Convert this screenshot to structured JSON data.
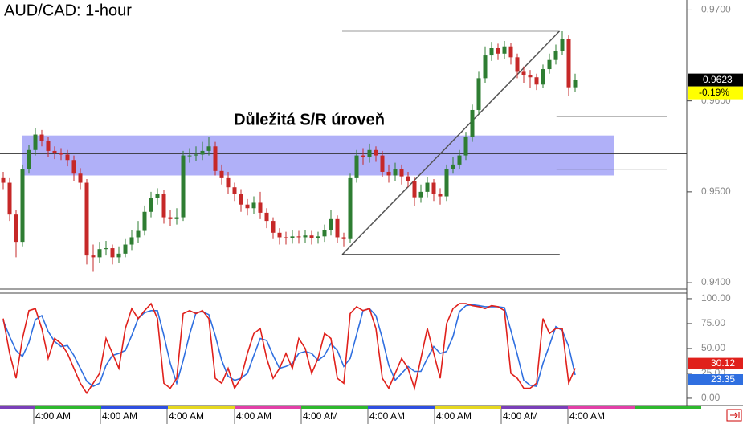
{
  "chart_data": [
    {
      "type": "candlestick",
      "title": "AUD/CAD: 1-hour",
      "annotation": "Důležitá S/R úroveň",
      "change_label": "-0.19%",
      "up_color": "#2e7d32",
      "down_color": "#c62828",
      "open": [
        0.9515,
        0.951,
        0.9475,
        0.9445,
        0.9525,
        0.9546,
        0.9563,
        0.9556,
        0.9545,
        0.9543,
        0.9541,
        0.9535,
        0.952,
        0.951,
        0.943,
        0.9428,
        0.9437,
        0.9438,
        0.9428,
        0.9432,
        0.9442,
        0.945,
        0.9457,
        0.9478,
        0.9493,
        0.9498,
        0.9472,
        0.947,
        0.9472,
        0.954,
        0.954,
        0.9541,
        0.9545,
        0.955,
        0.9523,
        0.9515,
        0.9505,
        0.9498,
        0.9486,
        0.9482,
        0.9488,
        0.9477,
        0.9468,
        0.9455,
        0.945,
        0.9449,
        0.9451,
        0.945,
        0.9452,
        0.9449,
        0.9451,
        0.9458,
        0.947,
        0.945,
        0.9448,
        0.9515,
        0.954,
        0.9538,
        0.9546,
        0.954,
        0.9522,
        0.9518,
        0.9525,
        0.9517,
        0.9512,
        0.9494,
        0.95,
        0.951,
        0.9498,
        0.9495,
        0.9525,
        0.953,
        0.954,
        0.956,
        0.959,
        0.9625,
        0.965,
        0.9658,
        0.9652,
        0.966,
        0.9648,
        0.9632,
        0.9628,
        0.9626,
        0.9618,
        0.9635,
        0.9645,
        0.9655,
        0.9668,
        0.9615
      ],
      "high": [
        0.9522,
        0.9515,
        0.948,
        0.953,
        0.9552,
        0.957,
        0.9568,
        0.956,
        0.955,
        0.9548,
        0.9546,
        0.954,
        0.9526,
        0.9514,
        0.9442,
        0.9445,
        0.9446,
        0.9442,
        0.944,
        0.9448,
        0.9458,
        0.9468,
        0.9485,
        0.95,
        0.9504,
        0.9502,
        0.948,
        0.9482,
        0.9545,
        0.9548,
        0.955,
        0.9555,
        0.956,
        0.9555,
        0.953,
        0.9522,
        0.951,
        0.9503,
        0.9492,
        0.9495,
        0.95,
        0.9482,
        0.9472,
        0.946,
        0.9456,
        0.9458,
        0.9457,
        0.9458,
        0.9457,
        0.9456,
        0.9464,
        0.948,
        0.9474,
        0.9455,
        0.952,
        0.9546,
        0.9548,
        0.9553,
        0.955,
        0.9545,
        0.953,
        0.9532,
        0.953,
        0.9522,
        0.9516,
        0.9508,
        0.9516,
        0.9514,
        0.9504,
        0.953,
        0.9538,
        0.9546,
        0.9566,
        0.9596,
        0.9632,
        0.966,
        0.9665,
        0.9663,
        0.9666,
        0.9664,
        0.9652,
        0.9638,
        0.9634,
        0.963,
        0.964,
        0.9652,
        0.9662,
        0.9677,
        0.9672,
        0.963
      ],
      "low": [
        0.9503,
        0.9468,
        0.9428,
        0.944,
        0.952,
        0.954,
        0.955,
        0.9538,
        0.9536,
        0.9535,
        0.9528,
        0.9512,
        0.9503,
        0.942,
        0.9412,
        0.9422,
        0.943,
        0.942,
        0.9422,
        0.9428,
        0.9436,
        0.9444,
        0.9452,
        0.9472,
        0.9486,
        0.9465,
        0.9462,
        0.9464,
        0.9468,
        0.9532,
        0.9534,
        0.9535,
        0.954,
        0.9518,
        0.9508,
        0.9498,
        0.949,
        0.9478,
        0.9474,
        0.9476,
        0.947,
        0.946,
        0.9448,
        0.9442,
        0.9442,
        0.9443,
        0.9443,
        0.9444,
        0.9442,
        0.9443,
        0.9445,
        0.9452,
        0.9444,
        0.944,
        0.9444,
        0.951,
        0.953,
        0.9532,
        0.9533,
        0.9516,
        0.951,
        0.9512,
        0.9508,
        0.9505,
        0.9484,
        0.9488,
        0.9494,
        0.949,
        0.9486,
        0.949,
        0.952,
        0.9525,
        0.9535,
        0.9555,
        0.9585,
        0.962,
        0.9644,
        0.9645,
        0.9646,
        0.964,
        0.9625,
        0.962,
        0.9614,
        0.9612,
        0.9614,
        0.963,
        0.964,
        0.965,
        0.9605,
        0.961
      ],
      "close": [
        0.951,
        0.9475,
        0.9445,
        0.9525,
        0.9546,
        0.9563,
        0.9556,
        0.9545,
        0.9543,
        0.9541,
        0.9535,
        0.952,
        0.951,
        0.943,
        0.9428,
        0.9437,
        0.9438,
        0.9428,
        0.9432,
        0.9442,
        0.945,
        0.9457,
        0.9478,
        0.9493,
        0.9498,
        0.9472,
        0.947,
        0.9472,
        0.954,
        0.954,
        0.9541,
        0.9545,
        0.955,
        0.9523,
        0.9515,
        0.9505,
        0.9498,
        0.9486,
        0.9482,
        0.9488,
        0.9477,
        0.9468,
        0.9455,
        0.945,
        0.9449,
        0.9451,
        0.945,
        0.9452,
        0.9449,
        0.9451,
        0.9458,
        0.947,
        0.945,
        0.9448,
        0.9515,
        0.954,
        0.9538,
        0.9546,
        0.954,
        0.9522,
        0.9518,
        0.9525,
        0.9517,
        0.9512,
        0.9494,
        0.95,
        0.951,
        0.9498,
        0.9495,
        0.9525,
        0.953,
        0.954,
        0.956,
        0.959,
        0.9625,
        0.965,
        0.9658,
        0.9652,
        0.966,
        0.9648,
        0.9632,
        0.9628,
        0.9626,
        0.9618,
        0.9635,
        0.9645,
        0.9655,
        0.9668,
        0.9615,
        0.9623
      ],
      "ylim": [
        0.9393,
        0.9711
      ],
      "yticks": [
        {
          "value": 0.97,
          "label": "0.9700"
        },
        {
          "value": 0.96,
          "label": "0.9600"
        },
        {
          "value": 0.95,
          "label": "0.9500"
        },
        {
          "value": 0.94,
          "label": "0.9400"
        }
      ],
      "xlim": [
        -0.5,
        106.375
      ],
      "xticks": [
        {
          "value": 4.75,
          "label": "4:00 AM"
        },
        {
          "value": 15.125,
          "label": "4:00 AM"
        },
        {
          "value": 25.5,
          "label": "4:00 AM"
        },
        {
          "value": 36,
          "label": "4:00 AM"
        },
        {
          "value": 46.375,
          "label": "4:00 AM"
        },
        {
          "value": 56.75,
          "label": "4:00 AM"
        },
        {
          "value": 67.125,
          "label": "4:00 AM"
        },
        {
          "value": 77.5,
          "label": "4:00 AM"
        },
        {
          "value": 87.875,
          "label": "4:00 AM"
        }
      ],
      "sr_zone": {
        "x": [
          2.9,
          95.1
        ],
        "y": [
          0.9518,
          0.9562
        ]
      },
      "sr_line": 0.9542,
      "trendline": {
        "x": [
          52.75,
          86.6
        ],
        "y": [
          0.9431,
          0.9677
        ]
      },
      "fib": {
        "x": [
          86.1,
          103.25
        ],
        "levels": [
          0.9583,
          0.9525
        ]
      }
    },
    {
      "type": "line",
      "series": [
        {
          "color": "#e0201b",
          "values": [
            80,
            45,
            20,
            60,
            88,
            90,
            70,
            40,
            60,
            55,
            45,
            30,
            15,
            5,
            15,
            25,
            60,
            45,
            30,
            70,
            90,
            80,
            88,
            95,
            80,
            15,
            10,
            20,
            85,
            88,
            85,
            88,
            80,
            20,
            15,
            30,
            10,
            20,
            45,
            65,
            70,
            40,
            20,
            30,
            45,
            30,
            60,
            50,
            25,
            40,
            65,
            60,
            20,
            15,
            85,
            92,
            88,
            90,
            70,
            20,
            10,
            25,
            40,
            30,
            10,
            40,
            70,
            45,
            20,
            75,
            90,
            95,
            95,
            93,
            92,
            90,
            93,
            92,
            88,
            25,
            20,
            10,
            10,
            15,
            80,
            65,
            70,
            70,
            15,
            30.12
          ]
        },
        {
          "color": "#2f6fe0",
          "values": [
            78,
            62,
            48,
            42,
            56,
            79,
            83,
            67,
            57,
            52,
            53,
            43,
            30,
            17,
            12,
            15,
            33,
            43,
            45,
            48,
            63,
            80,
            86,
            88,
            88,
            63,
            35,
            15,
            38,
            64,
            86,
            87,
            84,
            63,
            38,
            22,
            18,
            20,
            25,
            43,
            60,
            58,
            43,
            30,
            32,
            35,
            45,
            47,
            45,
            38,
            43,
            55,
            48,
            32,
            40,
            64,
            88,
            90,
            83,
            60,
            33,
            18,
            25,
            32,
            27,
            27,
            40,
            52,
            45,
            47,
            62,
            87,
            93,
            94,
            93,
            92,
            92,
            92,
            91,
            68,
            44,
            18,
            13,
            12,
            35,
            53,
            72,
            68,
            52,
            23.35
          ]
        }
      ],
      "ylim": [
        -7.3,
        105.6
      ],
      "yticks": [
        {
          "value": 100,
          "label": "100.00"
        },
        {
          "value": 75,
          "label": "75.00"
        },
        {
          "value": 50,
          "label": "50.00"
        },
        {
          "value": 25,
          "label": "25.00"
        },
        {
          "value": 0,
          "label": "0.00"
        }
      ],
      "xlim": [
        -0.5,
        106.375
      ]
    }
  ]
}
